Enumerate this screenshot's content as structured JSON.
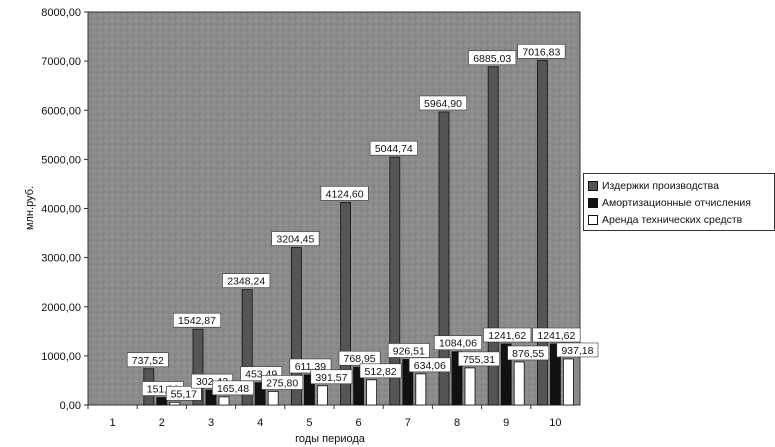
{
  "chart_data": {
    "type": "bar",
    "title": "",
    "xlabel": "годы периода",
    "ylabel": "млн.руб.",
    "ylim": [
      0,
      8000
    ],
    "y_ticks": [
      "0,00",
      "1000,00",
      "2000,00",
      "3000,00",
      "4000,00",
      "5000,00",
      "6000,00",
      "7000,00",
      "8000,00"
    ],
    "categories": [
      "1",
      "2",
      "3",
      "4",
      "5",
      "6",
      "7",
      "8",
      "9",
      "10"
    ],
    "grid": false,
    "legend_position": "right",
    "series": [
      {
        "name": "Издержки производства",
        "color": "#555555",
        "values": [
          null,
          737.52,
          1542.87,
          2348.24,
          3204.45,
          4124.6,
          5044.74,
          5964.9,
          6885.03,
          7016.83
        ],
        "labels": [
          "",
          "737,52",
          "1542,87",
          "2348,24",
          "3204,45",
          "4124,60",
          "5044,74",
          "5964,90",
          "6885,03",
          "7016,83"
        ]
      },
      {
        "name": "Амортизационные отчисления",
        "color": "#111111",
        "values": [
          null,
          151.36,
          302.42,
          453.49,
          611.39,
          768.95,
          926.51,
          1084.06,
          1241.62,
          1241.62
        ],
        "labels": [
          "",
          "151,36",
          "302,42",
          "453,49",
          "611,39",
          "768,95",
          "926,51",
          "1084,06",
          "1241,62",
          "1241,62"
        ]
      },
      {
        "name": "Аренда технических средств",
        "color": "#ffffff",
        "values": [
          null,
          55.17,
          165.48,
          275.8,
          391.57,
          512.82,
          634.06,
          755.31,
          876.55,
          937.18
        ],
        "labels": [
          "",
          "55,17",
          "165,48",
          "275,80",
          "391,57",
          "512,82",
          "634,06",
          "755,31",
          "876,55",
          "937,18"
        ]
      }
    ]
  }
}
